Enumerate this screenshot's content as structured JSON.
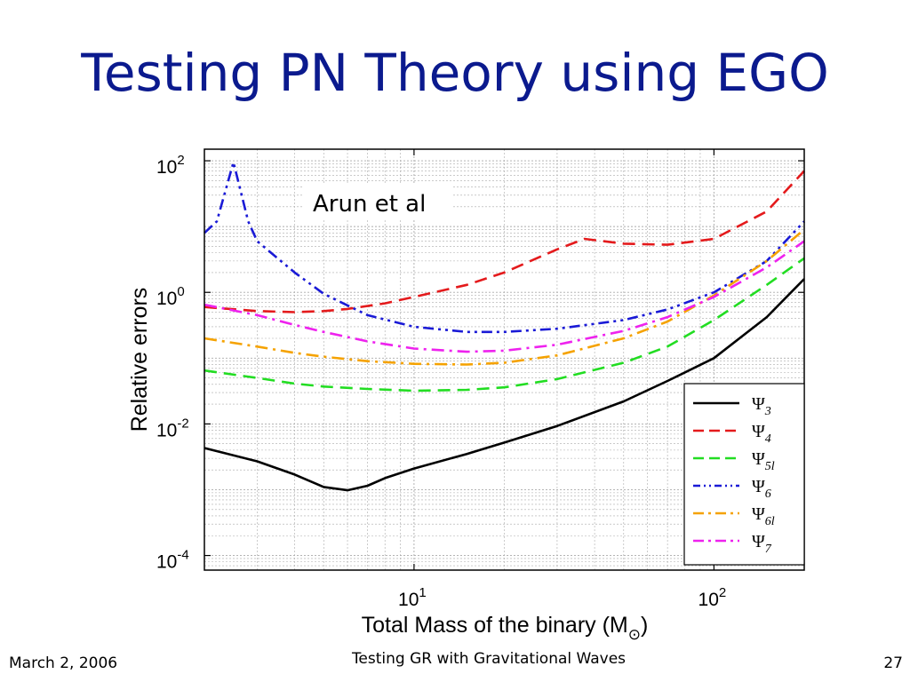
{
  "slide": {
    "title": "Testing PN Theory using EGO",
    "footer_left": "March 2, 2006",
    "footer_center": "Testing GR with Gravitational Waves",
    "footer_right": "27"
  },
  "chart_data": {
    "type": "line",
    "xlabel": "Total Mass of the binary (M⊙)",
    "ylabel": "Relative errors",
    "xscale": "log",
    "yscale": "log",
    "xlim": [
      2,
      200
    ],
    "ylim": [
      6e-05,
      150
    ],
    "x_ticks": [
      10,
      100
    ],
    "x_tick_labels": [
      {
        "base": "10",
        "exp": "1"
      },
      {
        "base": "10",
        "exp": "2"
      }
    ],
    "y_ticks": [
      0.0001,
      0.01,
      1,
      100
    ],
    "y_tick_labels": [
      {
        "base": "10",
        "exp": "-4"
      },
      {
        "base": "10",
        "exp": "-2"
      },
      {
        "base": "10",
        "exp": "0"
      },
      {
        "base": "10",
        "exp": "2"
      }
    ],
    "grid": true,
    "legend_position": "bottom-right",
    "annotation": "Arun et al",
    "series": [
      {
        "name": "Ψ3",
        "symbol": "Ψ",
        "sub": "3",
        "color": "#000000",
        "dash": "solid",
        "x": [
          2,
          3,
          4,
          5,
          6,
          7,
          8,
          10,
          15,
          20,
          30,
          50,
          70,
          100,
          150,
          200
        ],
        "y": [
          0.0043,
          0.0027,
          0.0017,
          0.0011,
          0.00098,
          0.00115,
          0.0015,
          0.0021,
          0.0035,
          0.0052,
          0.0093,
          0.022,
          0.045,
          0.1,
          0.42,
          1.6
        ]
      },
      {
        "name": "Ψ4",
        "symbol": "Ψ",
        "sub": "4",
        "color": "#e41a1c",
        "dash": "dashed",
        "x": [
          2,
          3,
          4,
          5,
          6,
          8,
          10,
          15,
          20,
          30,
          37,
          50,
          70,
          100,
          150,
          200
        ],
        "y": [
          0.6,
          0.52,
          0.5,
          0.52,
          0.56,
          0.68,
          0.85,
          1.3,
          2.0,
          4.5,
          6.5,
          5.5,
          5.3,
          6.5,
          17,
          70
        ]
      },
      {
        "name": "Ψ5l",
        "symbol": "Ψ",
        "sub": "5l",
        "color": "#22dd22",
        "dash": "dashed",
        "x": [
          2,
          3,
          4,
          5,
          7,
          10,
          15,
          20,
          30,
          50,
          70,
          100,
          150,
          200
        ],
        "y": [
          0.065,
          0.05,
          0.041,
          0.037,
          0.034,
          0.032,
          0.033,
          0.036,
          0.048,
          0.085,
          0.15,
          0.38,
          1.3,
          3.3
        ]
      },
      {
        "name": "Ψ6",
        "symbol": "Ψ",
        "sub": "6",
        "color": "#1a1ad6",
        "dash": "dashdotdot",
        "x": [
          2,
          2.2,
          2.5,
          2.8,
          3,
          4,
          5,
          7,
          10,
          15,
          20,
          30,
          50,
          70,
          100,
          150,
          200
        ],
        "y": [
          8,
          12,
          95,
          12,
          6,
          2.0,
          0.95,
          0.45,
          0.3,
          0.25,
          0.25,
          0.28,
          0.38,
          0.55,
          1.0,
          3.0,
          12
        ]
      },
      {
        "name": "Ψ6l",
        "symbol": "Ψ",
        "sub": "6l",
        "color": "#f5a200",
        "dash": "dashdot",
        "x": [
          2,
          3,
          4,
          5,
          7,
          10,
          15,
          20,
          30,
          50,
          70,
          100,
          150,
          200
        ],
        "y": [
          0.2,
          0.15,
          0.12,
          0.105,
          0.09,
          0.082,
          0.08,
          0.085,
          0.11,
          0.2,
          0.36,
          0.9,
          3.0,
          9
        ]
      },
      {
        "name": "Ψ7",
        "symbol": "Ψ",
        "sub": "7",
        "color": "#ee22ee",
        "dash": "dashdot",
        "x": [
          2,
          3,
          4,
          5,
          7,
          10,
          15,
          20,
          30,
          50,
          70,
          100,
          150,
          200
        ],
        "y": [
          0.65,
          0.45,
          0.32,
          0.25,
          0.18,
          0.14,
          0.125,
          0.13,
          0.16,
          0.26,
          0.42,
          0.85,
          2.4,
          6
        ]
      }
    ]
  }
}
